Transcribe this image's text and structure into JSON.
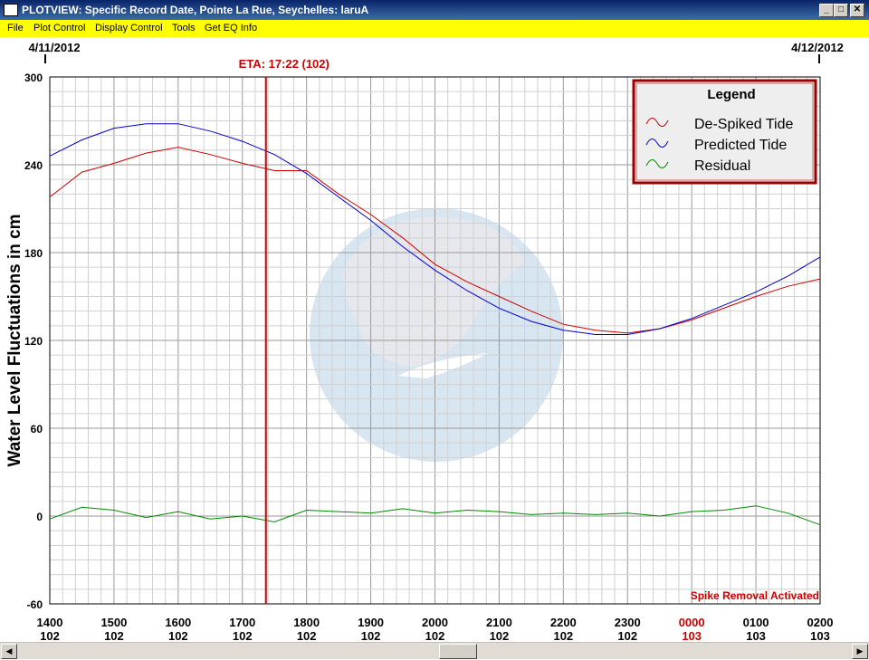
{
  "window": {
    "title": "PLOTVIEW: Specific Record Date, Pointe La Rue, Seychelles: laruA",
    "minimize_symbol": "_",
    "maximize_symbol": "□",
    "close_symbol": "✕"
  },
  "menu": [
    "File",
    "Plot Control",
    "Display Control",
    "Tools",
    "Get EQ Info"
  ],
  "plot": {
    "start_date": "4/11/2012",
    "end_date": "4/12/2012",
    "eta_label": "ETA: 17:22 (102)",
    "ylabel": "Water Level Fluctuations in cm",
    "status": "Spike Removal Activated",
    "legend_title": "Legend",
    "colors": {
      "despiked": "#cc0000",
      "predicted": "#0000cc",
      "residual": "#008800",
      "eta": "#cc0000",
      "legend_border": "#990000",
      "highlight": "#cc0000"
    }
  },
  "chart_data": {
    "type": "line",
    "ylim": [
      -60,
      300
    ],
    "yticks": [
      300,
      240,
      180,
      120,
      60,
      0,
      -60
    ],
    "xticks": [
      "1400",
      "1500",
      "1600",
      "1700",
      "1800",
      "1900",
      "2000",
      "2100",
      "2200",
      "2300",
      "0000",
      "0100",
      "0200"
    ],
    "xtick_days": [
      "102",
      "102",
      "102",
      "102",
      "102",
      "102",
      "102",
      "102",
      "102",
      "102",
      "103",
      "103",
      "103"
    ],
    "highlight_tick": "0000",
    "eta_time": "17:22",
    "grid": true,
    "legend": "top-right",
    "series": [
      {
        "name": "De-Spiked Tide",
        "key": "despiked",
        "times": [
          "14:00",
          "14:30",
          "15:00",
          "15:30",
          "16:00",
          "16:30",
          "17:00",
          "17:30",
          "18:00",
          "18:30",
          "19:00",
          "19:30",
          "20:00",
          "20:30",
          "21:00",
          "21:30",
          "22:00",
          "22:30",
          "23:00",
          "23:30",
          "00:00",
          "00:30",
          "01:00",
          "01:30",
          "02:00"
        ],
        "values": [
          218,
          235,
          241,
          248,
          252,
          247,
          241,
          236,
          236,
          220,
          206,
          190,
          172,
          160,
          150,
          140,
          131,
          127,
          125,
          128,
          134,
          142,
          150,
          157,
          162
        ]
      },
      {
        "name": "Predicted Tide",
        "key": "predicted",
        "times": [
          "14:00",
          "14:30",
          "15:00",
          "15:30",
          "16:00",
          "16:30",
          "17:00",
          "17:30",
          "18:00",
          "18:30",
          "19:00",
          "19:30",
          "20:00",
          "20:30",
          "21:00",
          "21:30",
          "22:00",
          "22:30",
          "23:00",
          "23:30",
          "00:00",
          "00:30",
          "01:00",
          "01:30",
          "02:00"
        ],
        "values": [
          246,
          257,
          265,
          268,
          268,
          263,
          256,
          247,
          234,
          218,
          202,
          184,
          168,
          154,
          142,
          133,
          127,
          124,
          124,
          128,
          135,
          144,
          153,
          164,
          177
        ]
      },
      {
        "name": "Residual",
        "key": "residual",
        "times": [
          "14:00",
          "14:30",
          "15:00",
          "15:30",
          "16:00",
          "16:30",
          "17:00",
          "17:30",
          "18:00",
          "18:30",
          "19:00",
          "19:30",
          "20:00",
          "20:30",
          "21:00",
          "21:30",
          "22:00",
          "22:30",
          "23:00",
          "23:30",
          "00:00",
          "00:30",
          "01:00",
          "01:30",
          "02:00"
        ],
        "values": [
          -2,
          6,
          4,
          -1,
          3,
          -2,
          0,
          -4,
          4,
          3,
          2,
          5,
          2,
          4,
          3,
          1,
          2,
          1,
          2,
          0,
          3,
          4,
          7,
          2,
          -6
        ]
      }
    ]
  }
}
